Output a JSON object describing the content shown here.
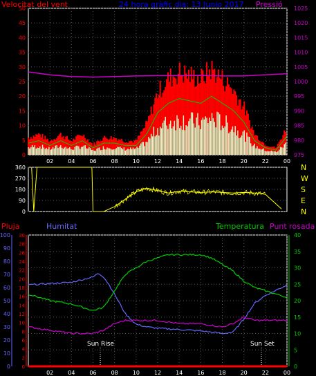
{
  "header": {
    "left_label": "Velocitat del vent",
    "title": "24 hora gràfic dia: 13 Junio 2017",
    "right_label": "Pressió"
  },
  "colors": {
    "background": "#000000",
    "wind": "#ff0000",
    "wind_avg": "#00cc00",
    "wind_gust_fill": "#ccffcc",
    "pressure": "#cc00cc",
    "direction": "#ffff00",
    "rain": "#ff0000",
    "humidity": "#6666ff",
    "temperature": "#00cc00",
    "dewpoint": "#cc00cc",
    "title": "#0000ff",
    "axis": "#ffffff"
  },
  "panels": {
    "wind": {
      "left_ticks": [
        "50",
        "45",
        "40",
        "35",
        "30",
        "25",
        "20",
        "15",
        "10",
        "5",
        "0"
      ],
      "right_ticks": [
        "1025",
        "1020",
        "1015",
        "1010",
        "1005",
        "1000",
        "995",
        "990",
        "985",
        "980",
        "975"
      ],
      "x_ticks": [
        "02",
        "04",
        "06",
        "08",
        "10",
        "12",
        "14",
        "16",
        "18",
        "20",
        "22",
        "00"
      ]
    },
    "direction": {
      "left_ticks": [
        "360",
        "270",
        "180",
        "90",
        "0"
      ],
      "right_labels": [
        "N",
        "W",
        "S",
        "E",
        "N"
      ]
    },
    "climate": {
      "legend": {
        "rain": "Pluja",
        "humidity": "Humitat",
        "temperature": "Temperatura",
        "dewpoint": "Punt rosada"
      },
      "humidity_ticks": [
        "100",
        "90",
        "80",
        "70",
        "60",
        "50",
        "40",
        "30",
        "20",
        "10",
        "0"
      ],
      "rain_ticks": [
        "30",
        "28",
        "26",
        "24",
        "22",
        "20",
        "18",
        "16",
        "14",
        "12",
        "10",
        "8",
        "6",
        "4",
        "2",
        "0"
      ],
      "temp_ticks": [
        "40",
        "35",
        "30",
        "25",
        "20",
        "15",
        "10",
        "5",
        "0"
      ],
      "x_ticks": [
        "02",
        "04",
        "06",
        "08",
        "10",
        "12",
        "14",
        "16",
        "18",
        "20",
        "22",
        "00"
      ],
      "annotations": {
        "sunrise": "Sun Rise",
        "sunset": "Sun Set"
      }
    }
  },
  "chart_data": [
    {
      "type": "line",
      "title": "",
      "x_unit": "hour",
      "xlim": [
        0,
        24
      ],
      "ylim_left": [
        0,
        50
      ],
      "ylim_right": [
        975,
        1025
      ],
      "grid": true,
      "series": [
        {
          "name": "Velocitat del vent",
          "axis": "left",
          "x": [
            0,
            1,
            2,
            3,
            4,
            5,
            6,
            7,
            8,
            9,
            10,
            11,
            12,
            13,
            14,
            15,
            16,
            17,
            18,
            19,
            20,
            21,
            22,
            23,
            24
          ],
          "values": [
            5,
            6,
            4,
            6,
            4,
            6,
            3,
            5,
            5,
            4,
            4,
            9,
            18,
            22,
            24,
            23,
            22,
            25,
            22,
            19,
            14,
            6,
            3,
            2,
            8
          ]
        },
        {
          "name": "Pressió",
          "axis": "right",
          "x": [
            0,
            2,
            4,
            6,
            8,
            10,
            12,
            14,
            16,
            18,
            20,
            22,
            24
          ],
          "values": [
            1003.3,
            1002.3,
            1001.7,
            1001.5,
            1001.7,
            1001.9,
            1002,
            1002,
            1002.1,
            1001.9,
            1001.9,
            1002.3,
            1002.7
          ]
        }
      ]
    },
    {
      "type": "scatter",
      "title": "",
      "ylim": [
        0,
        360
      ],
      "x": [
        0.3,
        0.5,
        0.8,
        1,
        5.9,
        6,
        7,
        8,
        9,
        10,
        11,
        12,
        13,
        14,
        15,
        16,
        17,
        18,
        19,
        20,
        21,
        22,
        23,
        23.5
      ],
      "values": [
        360,
        0,
        360,
        360,
        360,
        0,
        0,
        40,
        100,
        160,
        190,
        170,
        150,
        165,
        160,
        155,
        160,
        155,
        150,
        155,
        150,
        140,
        60,
        20
      ]
    },
    {
      "type": "line",
      "title": "",
      "xlim": [
        0,
        24
      ],
      "series": [
        {
          "name": "Humitat",
          "axis": "humidity",
          "ylim": [
            0,
            100
          ],
          "x": [
            0,
            2,
            4,
            6,
            6.5,
            7,
            7.5,
            8,
            9,
            10,
            11,
            12,
            14,
            16,
            18,
            19,
            20,
            21,
            22,
            23,
            24
          ],
          "values": [
            62,
            63,
            64,
            68,
            71,
            68,
            62,
            55,
            40,
            32,
            30,
            29,
            28,
            27,
            25,
            26,
            36,
            48,
            54,
            58,
            62
          ]
        },
        {
          "name": "Temperatura",
          "axis": "temperature",
          "ylim": [
            0,
            40
          ],
          "x": [
            0,
            2,
            4,
            6,
            7,
            8,
            9,
            10,
            11,
            12,
            13,
            14,
            16,
            17,
            18,
            19,
            20,
            21,
            22,
            23,
            24
          ],
          "values": [
            22,
            20,
            19,
            17,
            18,
            23,
            28,
            30,
            32,
            33,
            34,
            34,
            34,
            33,
            31,
            29,
            26,
            24,
            23,
            22,
            21
          ]
        },
        {
          "name": "Punt rosada",
          "axis": "temperature",
          "ylim": [
            0,
            40
          ],
          "x": [
            0,
            2,
            4,
            6,
            7,
            8,
            9,
            10,
            12,
            14,
            16,
            18,
            19,
            20,
            21,
            22,
            23,
            24
          ],
          "values": [
            12,
            11,
            10,
            10,
            11,
            13,
            14,
            14,
            14,
            13,
            13,
            12,
            13,
            15,
            14,
            14,
            14,
            14
          ]
        },
        {
          "name": "Pluja",
          "axis": "rain",
          "ylim": [
            0,
            30
          ],
          "x": [
            0,
            24
          ],
          "values": [
            0,
            0
          ]
        }
      ]
    }
  ]
}
